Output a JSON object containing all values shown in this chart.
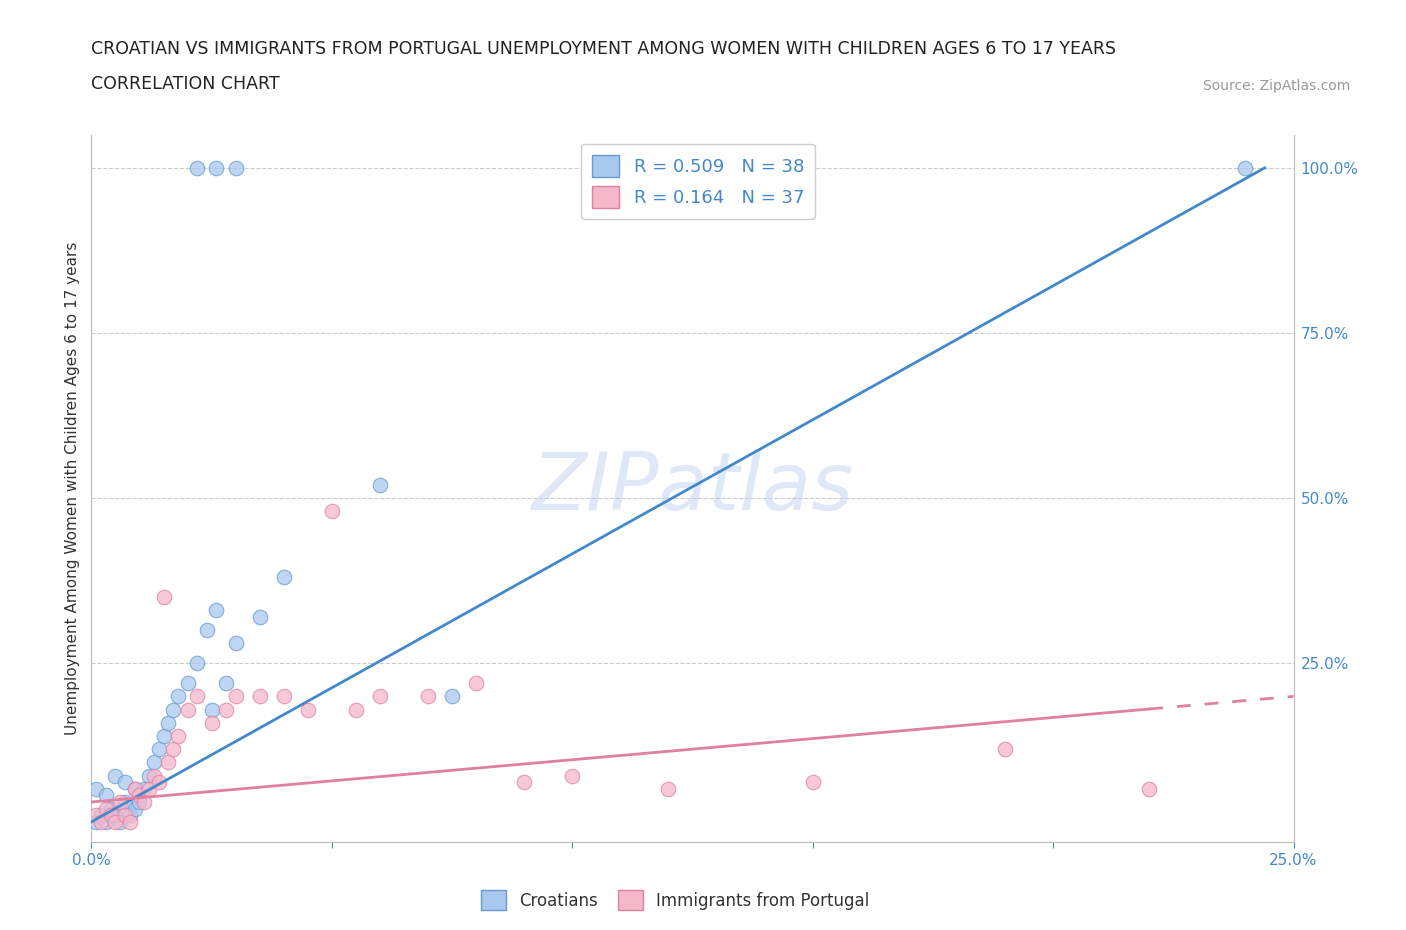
{
  "title_line1": "CROATIAN VS IMMIGRANTS FROM PORTUGAL UNEMPLOYMENT AMONG WOMEN WITH CHILDREN AGES 6 TO 17 YEARS",
  "title_line2": "CORRELATION CHART",
  "source_text": "Source: ZipAtlas.com",
  "ylabel": "Unemployment Among Women with Children Ages 6 to 17 years",
  "xmin": 0.0,
  "xmax": 0.25,
  "ymin": -0.02,
  "ymax": 1.05,
  "ytick_right_labels": [
    "100.0%",
    "75.0%",
    "50.0%",
    "25.0%"
  ],
  "ytick_right_values": [
    1.0,
    0.75,
    0.5,
    0.25
  ],
  "croatians_color": "#a8c8f0",
  "croatians_edge_color": "#6699cc",
  "portugal_color": "#f5b8cb",
  "portugal_edge_color": "#e080a0",
  "blue_line_color": "#4488cc",
  "pink_line_color": "#e080a0",
  "legend_R1": "0.509",
  "legend_N1": "38",
  "legend_R2": "0.164",
  "legend_N2": "37",
  "watermark": "ZIPatlas",
  "background_color": "#ffffff",
  "blue_line_x0": 0.0,
  "blue_line_y0": 0.01,
  "blue_line_x1": 0.244,
  "blue_line_y1": 1.0,
  "pink_line_x0": 0.0,
  "pink_line_y0": 0.04,
  "pink_line_solid_x1": 0.22,
  "pink_line_x1": 0.25,
  "pink_line_y1": 0.2,
  "croatians_x": [
    0.001,
    0.002,
    0.003,
    0.004,
    0.005,
    0.006,
    0.007,
    0.008,
    0.009,
    0.001,
    0.003,
    0.005,
    0.007,
    0.009,
    0.01,
    0.011,
    0.012,
    0.013,
    0.014,
    0.015,
    0.016,
    0.017,
    0.018,
    0.02,
    0.022,
    0.025,
    0.028,
    0.03,
    0.035,
    0.04,
    0.024,
    0.026,
    0.06,
    0.075,
    0.022,
    0.026,
    0.03,
    0.24
  ],
  "croatians_y": [
    0.01,
    0.02,
    0.01,
    0.03,
    0.02,
    0.01,
    0.04,
    0.02,
    0.03,
    0.06,
    0.05,
    0.08,
    0.07,
    0.06,
    0.04,
    0.06,
    0.08,
    0.1,
    0.12,
    0.14,
    0.16,
    0.18,
    0.2,
    0.22,
    0.25,
    0.18,
    0.22,
    0.28,
    0.32,
    0.38,
    0.3,
    0.33,
    0.52,
    0.2,
    1.0,
    1.0,
    1.0,
    1.0
  ],
  "portugal_x": [
    0.001,
    0.002,
    0.003,
    0.004,
    0.005,
    0.006,
    0.007,
    0.008,
    0.009,
    0.01,
    0.011,
    0.012,
    0.013,
    0.014,
    0.015,
    0.016,
    0.017,
    0.018,
    0.02,
    0.022,
    0.025,
    0.028,
    0.03,
    0.035,
    0.04,
    0.045,
    0.05,
    0.055,
    0.06,
    0.07,
    0.08,
    0.09,
    0.1,
    0.12,
    0.15,
    0.19,
    0.22
  ],
  "portugal_y": [
    0.02,
    0.01,
    0.03,
    0.02,
    0.01,
    0.04,
    0.02,
    0.01,
    0.06,
    0.05,
    0.04,
    0.06,
    0.08,
    0.07,
    0.35,
    0.1,
    0.12,
    0.14,
    0.18,
    0.2,
    0.16,
    0.18,
    0.2,
    0.2,
    0.2,
    0.18,
    0.48,
    0.18,
    0.2,
    0.2,
    0.22,
    0.07,
    0.08,
    0.06,
    0.07,
    0.12,
    0.06
  ]
}
